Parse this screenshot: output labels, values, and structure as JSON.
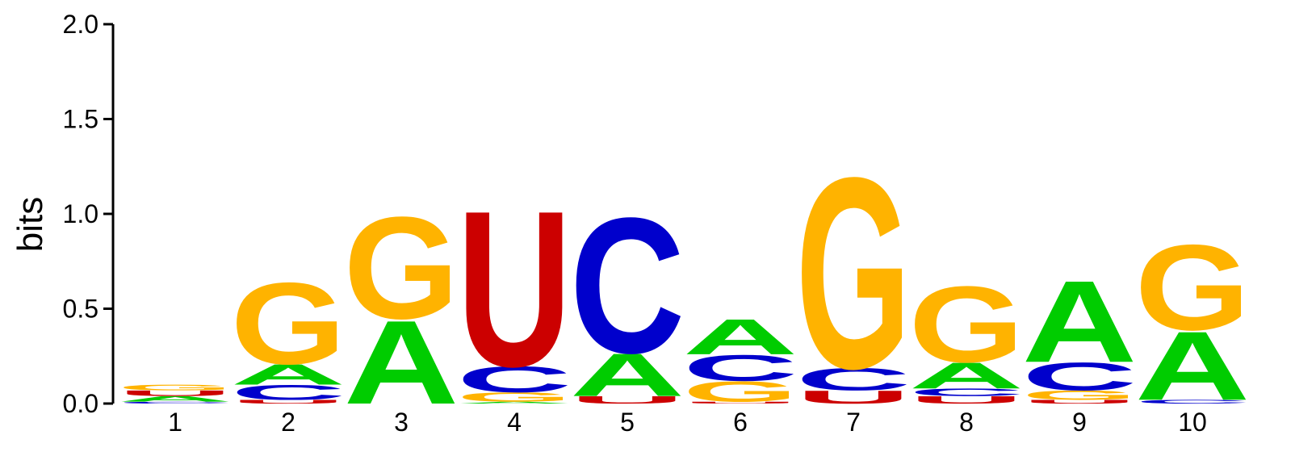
{
  "chart_data": {
    "type": "sequence-logo",
    "ylabel": "bits",
    "ylim": [
      0,
      2.0
    ],
    "yticks": [
      "0.0",
      "0.5",
      "1.0",
      "1.5",
      "2.0"
    ],
    "positions": [
      "1",
      "2",
      "3",
      "4",
      "5",
      "6",
      "7",
      "8",
      "9",
      "10"
    ],
    "colors": {
      "A": "#00cc00",
      "C": "#0000cc",
      "G": "#ffb300",
      "U": "#cc0000"
    },
    "columns": [
      {
        "position": "1",
        "stack": [
          {
            "letter": "C",
            "bits": 0.01
          },
          {
            "letter": "A",
            "bits": 0.03
          },
          {
            "letter": "U",
            "bits": 0.03
          },
          {
            "letter": "G",
            "bits": 0.03
          }
        ]
      },
      {
        "position": "2",
        "stack": [
          {
            "letter": "U",
            "bits": 0.02
          },
          {
            "letter": "C",
            "bits": 0.08
          },
          {
            "letter": "A",
            "bits": 0.11
          },
          {
            "letter": "G",
            "bits": 0.44
          }
        ]
      },
      {
        "position": "3",
        "stack": [
          {
            "letter": "A",
            "bits": 0.45
          },
          {
            "letter": "G",
            "bits": 0.55
          }
        ]
      },
      {
        "position": "4",
        "stack": [
          {
            "letter": "A",
            "bits": 0.01
          },
          {
            "letter": "G",
            "bits": 0.05
          },
          {
            "letter": "C",
            "bits": 0.14
          },
          {
            "letter": "U",
            "bits": 0.84
          }
        ]
      },
      {
        "position": "5",
        "stack": [
          {
            "letter": "U",
            "bits": 0.04
          },
          {
            "letter": "A",
            "bits": 0.23
          },
          {
            "letter": "C",
            "bits": 0.73
          }
        ]
      },
      {
        "position": "6",
        "stack": [
          {
            "letter": "U",
            "bits": 0.01
          },
          {
            "letter": "G",
            "bits": 0.11
          },
          {
            "letter": "C",
            "bits": 0.14
          },
          {
            "letter": "A",
            "bits": 0.19
          }
        ]
      },
      {
        "position": "7",
        "stack": [
          {
            "letter": "U",
            "bits": 0.07
          },
          {
            "letter": "C",
            "bits": 0.12
          },
          {
            "letter": "G",
            "bits": 1.03
          }
        ]
      },
      {
        "position": "8",
        "stack": [
          {
            "letter": "U",
            "bits": 0.04
          },
          {
            "letter": "C",
            "bits": 0.04
          },
          {
            "letter": "A",
            "bits": 0.14
          },
          {
            "letter": "G",
            "bits": 0.41
          }
        ]
      },
      {
        "position": "9",
        "stack": [
          {
            "letter": "U",
            "bits": 0.02
          },
          {
            "letter": "G",
            "bits": 0.05
          },
          {
            "letter": "C",
            "bits": 0.15
          },
          {
            "letter": "A",
            "bits": 0.44
          }
        ]
      },
      {
        "position": "10",
        "stack": [
          {
            "letter": "C",
            "bits": 0.02
          },
          {
            "letter": "A",
            "bits": 0.37
          },
          {
            "letter": "G",
            "bits": 0.46
          }
        ]
      }
    ]
  }
}
